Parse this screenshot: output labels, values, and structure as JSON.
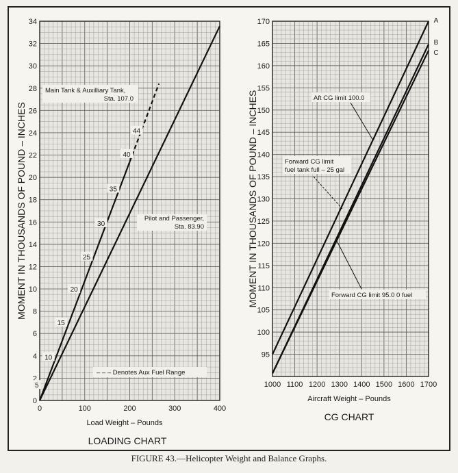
{
  "caption": "FIGURE 43.—Helicopter Weight and Balance Graphs.",
  "chart_data": [
    {
      "type": "line",
      "title": "LOADING CHART",
      "xlabel": "Load Weight – Pounds",
      "ylabel": "MOMENT IN THOUSANDS OF POUND – INCHES",
      "xlim": [
        0,
        400
      ],
      "ylim": [
        0,
        34
      ],
      "xticks": [
        0,
        100,
        200,
        300,
        400
      ],
      "yticks": [
        0,
        2,
        4,
        6,
        8,
        10,
        12,
        14,
        16,
        18,
        20,
        22,
        24,
        26,
        28,
        30,
        32,
        34
      ],
      "grid": true,
      "series": [
        {
          "name": "Main Tank & Auxilliary Tank, Sta. 107.0",
          "style": "solid",
          "x": [
            0,
            200
          ],
          "y": [
            0,
            21.4
          ]
        },
        {
          "name": "Main Tank & Auxilliary Tank, Sta. 107.0",
          "style": "dashed",
          "x": [
            200,
            265
          ],
          "y": [
            21.4,
            28.4
          ]
        },
        {
          "name": "Pilot and Passenger, Sta. 83.90",
          "style": "solid",
          "x": [
            0,
            400
          ],
          "y": [
            0,
            33.56
          ]
        }
      ],
      "label_main": [
        "Main Tank & Auxilliary Tank,",
        "Sta. 107.0"
      ],
      "label_pilot": [
        "Pilot and Passenger,",
        "Sta. 83.90"
      ],
      "legend_note": "– – – Denotes Aux Fuel Range",
      "gallon_marks": [
        {
          "label": "5",
          "x": 5,
          "y": 1.4
        },
        {
          "label": "10",
          "x": 36,
          "y": 3.9
        },
        {
          "label": "15",
          "x": 64,
          "y": 7.0
        },
        {
          "label": "20",
          "x": 93,
          "y": 10.0
        },
        {
          "label": "25",
          "x": 121,
          "y": 12.9
        },
        {
          "label": "30",
          "x": 153,
          "y": 15.9
        },
        {
          "label": "35",
          "x": 180,
          "y": 19.0
        },
        {
          "label": "40",
          "x": 210,
          "y": 22.1
        },
        {
          "label": "44",
          "x": 232,
          "y": 24.2
        }
      ]
    },
    {
      "type": "line",
      "title": "CG CHART",
      "xlabel": "Aircraft Weight – Pounds",
      "ylabel": "MOMENT IN THOUSANDS OF POUND – INCHES",
      "xlim": [
        1000,
        1700
      ],
      "ylim": [
        90,
        170
      ],
      "xticks": [
        1000,
        1100,
        1200,
        1300,
        1400,
        1500,
        1600,
        1700
      ],
      "yticks": [
        95,
        100,
        105,
        110,
        115,
        120,
        125,
        130,
        135,
        140,
        145,
        150,
        155,
        160,
        165,
        170
      ],
      "grid": true,
      "series": [
        {
          "name": "A",
          "x": [
            1000,
            1700
          ],
          "y": [
            95,
            170
          ]
        },
        {
          "name": "B",
          "x": [
            1000,
            1700
          ],
          "y": [
            90.7,
            164.8
          ]
        },
        {
          "name": "C",
          "x": [
            1000,
            1700
          ],
          "y": [
            90.7,
            163.4
          ]
        }
      ],
      "line_letters": [
        "A",
        "B",
        "C"
      ],
      "annotations": [
        {
          "text": [
            "Aft CG limit 100.0"
          ]
        },
        {
          "text": [
            "Forward CG limit",
            "fuel tank full – 25 gal"
          ]
        },
        {
          "text": [
            "Forward CG limit 95.0   0 fuel"
          ]
        }
      ]
    }
  ]
}
